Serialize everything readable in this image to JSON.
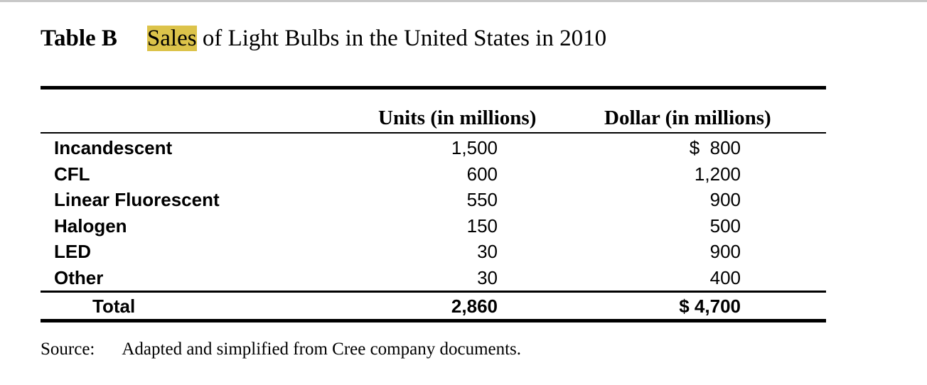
{
  "title": {
    "label": "Table B",
    "highlighted": "Sales",
    "rest": " of Light Bulbs in the United States in 2010",
    "highlight_color": "#dcc34a"
  },
  "table": {
    "headers": [
      "Units (in millions)",
      "Dollar (in millions)"
    ],
    "rows": [
      {
        "name": "Incandescent",
        "units": "1,500",
        "dollars": "$  800"
      },
      {
        "name": "CFL",
        "units": "600",
        "dollars": "1,200"
      },
      {
        "name": "Linear Fluorescent",
        "units": "550",
        "dollars": "900"
      },
      {
        "name": "Halogen",
        "units": "150",
        "dollars": "500"
      },
      {
        "name": "LED",
        "units": "30",
        "dollars": "900"
      },
      {
        "name": "Other",
        "units": "30",
        "dollars": "400"
      }
    ],
    "total": {
      "name": "Total",
      "units": "2,860",
      "dollars": "$ 4,700"
    }
  },
  "source": {
    "label": "Source:",
    "text": "Adapted and simplified from Cree company documents."
  }
}
